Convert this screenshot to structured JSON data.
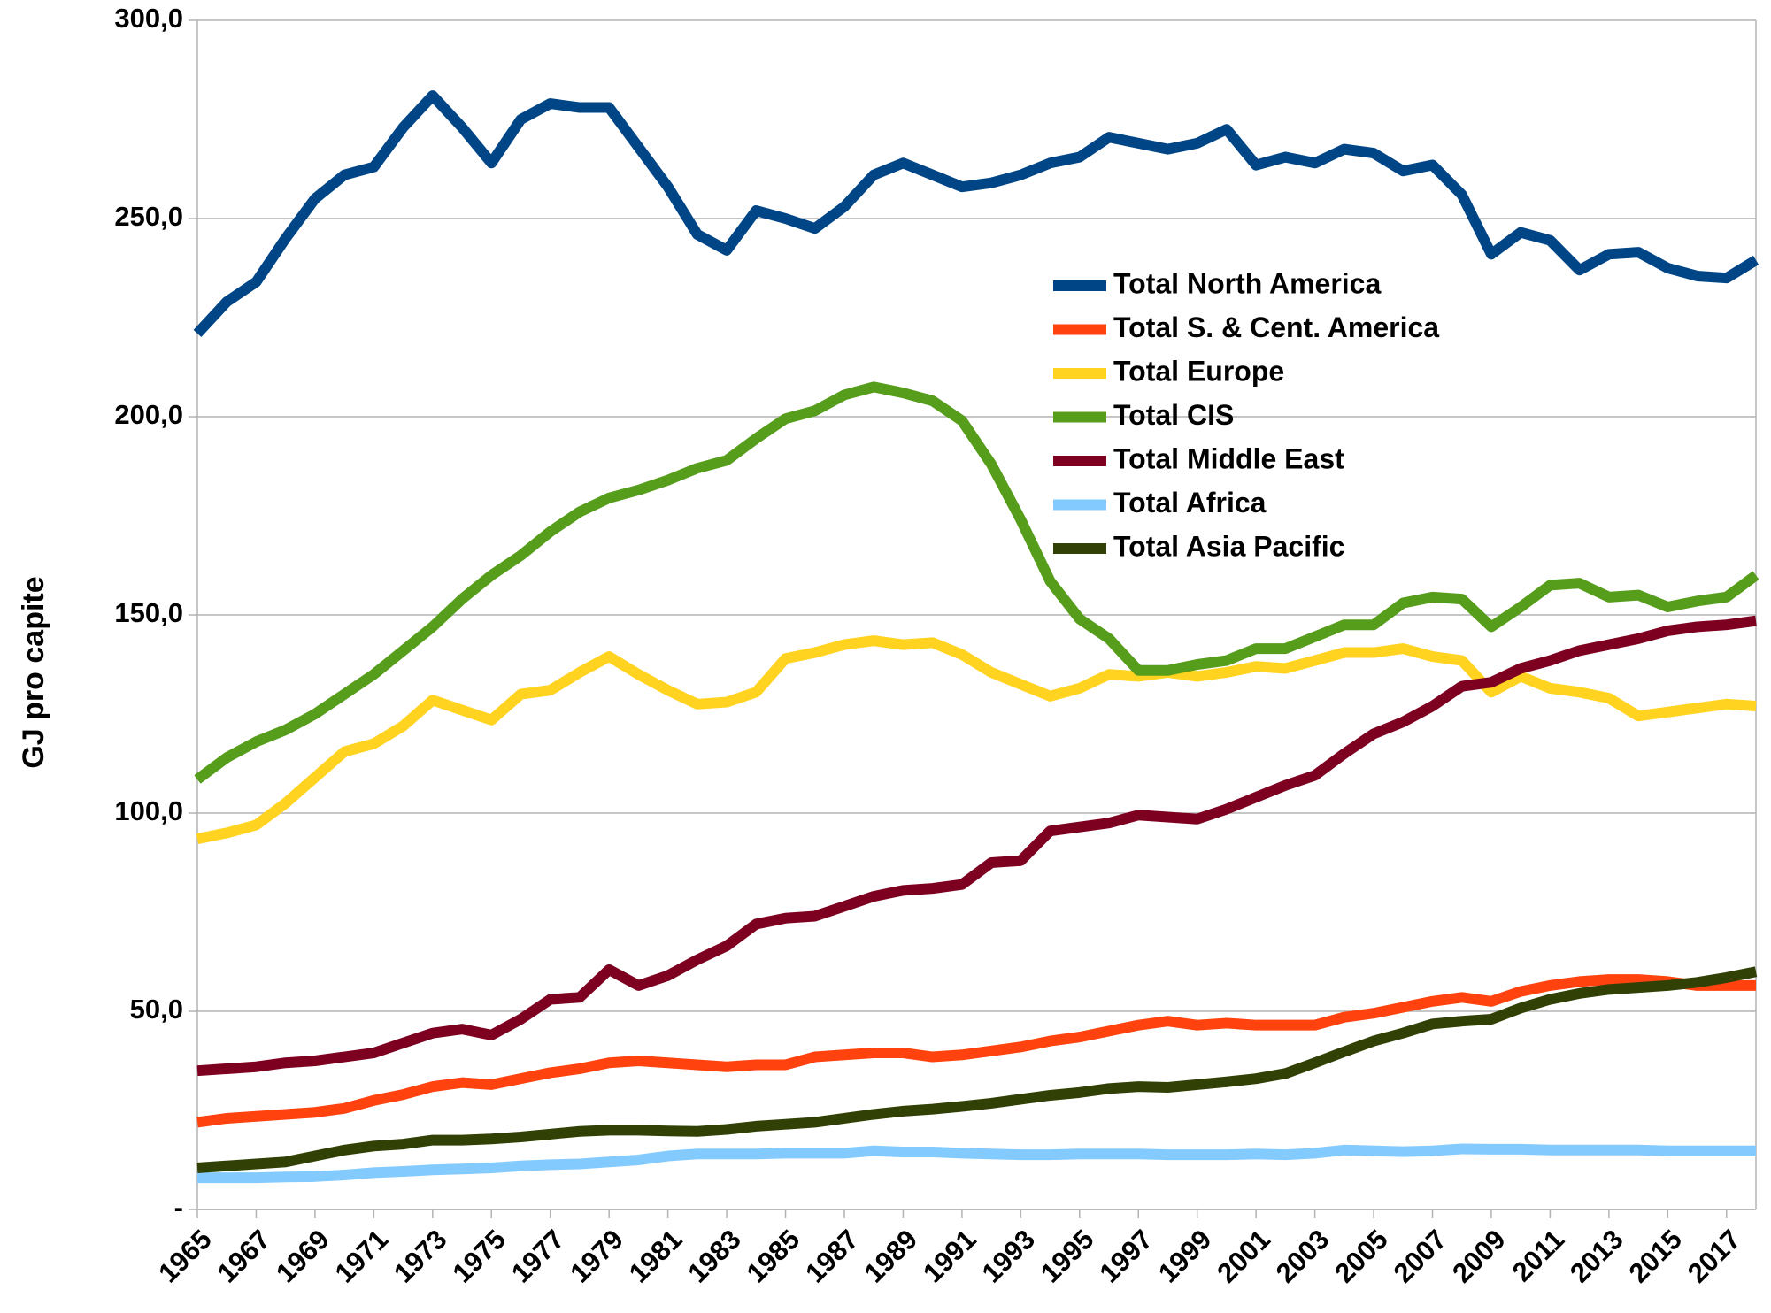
{
  "chart_data": {
    "type": "line",
    "ylabel": "GJ pro capite",
    "x": [
      1965,
      1966,
      1967,
      1968,
      1969,
      1970,
      1971,
      1972,
      1973,
      1974,
      1975,
      1976,
      1977,
      1978,
      1979,
      1980,
      1981,
      1982,
      1983,
      1984,
      1985,
      1986,
      1987,
      1988,
      1989,
      1990,
      1991,
      1992,
      1993,
      1994,
      1995,
      1996,
      1997,
      1998,
      1999,
      2000,
      2001,
      2002,
      2003,
      2004,
      2005,
      2006,
      2007,
      2008,
      2009,
      2010,
      2011,
      2012,
      2013,
      2014,
      2015,
      2016,
      2017,
      2018
    ],
    "xlim": [
      1965,
      2018
    ],
    "xticks": [
      1965,
      1967,
      1969,
      1971,
      1973,
      1975,
      1977,
      1979,
      1981,
      1983,
      1985,
      1987,
      1989,
      1991,
      1993,
      1995,
      1997,
      1999,
      2001,
      2003,
      2005,
      2007,
      2009,
      2011,
      2013,
      2015,
      2017
    ],
    "ylim": [
      0,
      300
    ],
    "yticks": [
      {
        "value": 0,
        "label": "-"
      },
      {
        "value": 50,
        "label": "50,0"
      },
      {
        "value": 100,
        "label": "100,0"
      },
      {
        "value": 150,
        "label": "150,0"
      },
      {
        "value": 200,
        "label": "200,0"
      },
      {
        "value": 250,
        "label": "250,0"
      },
      {
        "value": 300,
        "label": "300,0"
      }
    ],
    "grid": true,
    "legend": "upper right",
    "series": [
      {
        "name": "Total North America",
        "color": "#004586",
        "values": [
          221,
          229,
          234,
          245,
          255,
          261,
          263,
          273,
          281,
          273,
          264,
          275,
          279,
          278,
          278,
          268,
          258,
          246,
          242,
          252,
          250,
          247.5,
          253,
          261,
          264,
          261,
          258,
          259,
          261,
          264,
          265.5,
          270.5,
          269,
          267.5,
          269,
          272.5,
          263.5,
          265.5,
          264,
          267.5,
          266.5,
          262,
          263.5,
          256,
          241,
          246.5,
          244.5,
          237,
          241,
          241.5,
          237.5,
          235.5,
          235,
          239.5
        ]
      },
      {
        "name": "Total S. & Cent. America",
        "color": "#ff420e",
        "values": [
          22,
          23,
          23.5,
          24,
          24.5,
          25.5,
          27.5,
          29,
          31,
          32,
          31.5,
          33,
          34.5,
          35.5,
          37,
          37.5,
          37,
          36.5,
          36,
          36.5,
          36.5,
          38.5,
          39,
          39.5,
          39.5,
          38.5,
          39,
          40,
          41,
          42.5,
          43.5,
          45,
          46.5,
          47.5,
          46.5,
          47,
          46.5,
          46.5,
          46.5,
          48.5,
          49.5,
          51,
          52.5,
          53.5,
          52.5,
          55,
          56.5,
          57.5,
          58,
          58,
          57.5,
          56.5,
          56.5,
          56.5
        ]
      },
      {
        "name": "Total Europe",
        "color": "#ffd320",
        "values": [
          93.5,
          95,
          97,
          102.5,
          109,
          115.5,
          117.5,
          122,
          128.5,
          126,
          123.5,
          130,
          131,
          135.5,
          139.5,
          135,
          131,
          127.5,
          128,
          130.5,
          139,
          140.5,
          142.5,
          143.5,
          142.5,
          143,
          140,
          135.5,
          132.5,
          129.5,
          131.5,
          135,
          134.5,
          135.5,
          134.5,
          135.5,
          137,
          136.5,
          138.5,
          140.5,
          140.5,
          141.5,
          139.5,
          138.5,
          130.5,
          134.5,
          131.5,
          130.5,
          129,
          124.5,
          125.5,
          126.5,
          127.5,
          127
        ]
      },
      {
        "name": "Total CIS",
        "color": "#579d1c",
        "values": [
          108.5,
          114,
          118,
          121,
          125,
          130,
          135,
          141,
          147,
          154,
          160,
          165,
          171,
          176,
          179.5,
          181.5,
          184,
          187,
          189,
          194.5,
          199.5,
          201.5,
          205.5,
          207.5,
          206,
          204,
          199,
          188,
          174,
          158.5,
          149,
          144,
          136,
          136,
          137.5,
          138.5,
          141.5,
          141.5,
          144.5,
          147.5,
          147.5,
          153,
          154.5,
          154,
          147,
          152,
          157.5,
          158,
          154.5,
          155,
          152,
          153.5,
          154.5,
          160
        ]
      },
      {
        "name": "Total Middle East",
        "color": "#7e0021",
        "values": [
          35,
          35.5,
          36,
          37,
          37.5,
          38.5,
          39.5,
          42,
          44.5,
          45.5,
          44,
          48,
          53,
          53.5,
          60.5,
          56.5,
          59,
          63,
          66.5,
          72,
          73.5,
          74,
          76.5,
          79,
          80.5,
          81,
          82,
          87.5,
          88,
          95.5,
          96.5,
          97.5,
          99.5,
          99,
          98.5,
          101,
          104,
          107,
          109.5,
          115,
          120,
          123,
          127,
          132,
          133,
          136.5,
          138.5,
          141,
          142.5,
          144,
          146,
          147,
          147.5,
          148.5
        ]
      },
      {
        "name": "Total Africa",
        "color": "#83caff",
        "values": [
          8,
          8,
          8,
          8.2,
          8.3,
          8.7,
          9.3,
          9.6,
          10,
          10.2,
          10.5,
          11,
          11.3,
          11.5,
          12,
          12.5,
          13.5,
          14,
          14,
          14,
          14.2,
          14.2,
          14.2,
          14.8,
          14.5,
          14.5,
          14.2,
          14,
          13.8,
          13.8,
          14,
          14,
          14,
          13.8,
          13.8,
          13.8,
          14,
          13.8,
          14.2,
          15,
          14.8,
          14.6,
          14.8,
          15.3,
          15.2,
          15.2,
          15,
          15,
          15,
          15,
          14.8,
          14.8,
          14.8,
          14.8
        ]
      },
      {
        "name": "Total Asia Pacific",
        "color": "#314004",
        "values": [
          10.5,
          11,
          11.5,
          12,
          13.5,
          15,
          16,
          16.5,
          17.5,
          17.5,
          17.8,
          18.3,
          19,
          19.7,
          20,
          20,
          19.8,
          19.7,
          20.2,
          21,
          21.5,
          22,
          23,
          24,
          24.8,
          25.3,
          26,
          26.8,
          27.8,
          28.8,
          29.5,
          30.5,
          31,
          30.8,
          31.5,
          32.2,
          33,
          34.3,
          37,
          39.8,
          42.5,
          44.5,
          46.8,
          47.5,
          48,
          50.8,
          53,
          54.5,
          55.5,
          56,
          56.5,
          57.3,
          58.5,
          60
        ]
      }
    ]
  }
}
